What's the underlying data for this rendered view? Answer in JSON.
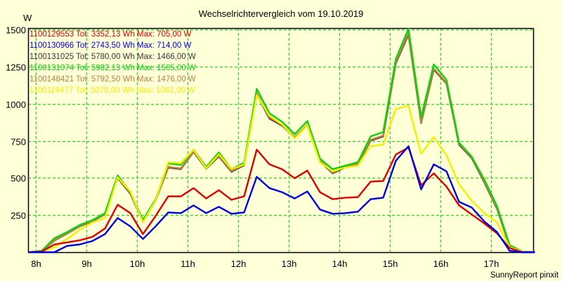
{
  "chart_data": {
    "type": "line",
    "title": "Wechselrichtervergleich vom 19.10.2019",
    "ylabel": "W",
    "xlabel": "",
    "footer": "SunnyReport pinxit",
    "ylim": [
      0,
      1500
    ],
    "xlim": [
      7.86,
      17.86
    ],
    "yticks": [
      250,
      500,
      750,
      1000,
      1250,
      1500
    ],
    "ytick_labels": [
      "250",
      "500",
      "750",
      "1000",
      "1250",
      "1500"
    ],
    "xticks": [
      8,
      9,
      10,
      11,
      12,
      13,
      14,
      15,
      16,
      17
    ],
    "xtick_labels": [
      "8h",
      "9h",
      "10h",
      "11h",
      "12h",
      "13h",
      "14h",
      "15h",
      "16h",
      "17h"
    ],
    "grid": true,
    "legend_position": "top-left",
    "x": [
      7.875,
      8.125,
      8.375,
      8.625,
      8.875,
      9.125,
      9.375,
      9.625,
      9.875,
      10.125,
      10.375,
      10.625,
      10.875,
      11.125,
      11.375,
      11.625,
      11.875,
      12.125,
      12.375,
      12.625,
      12.875,
      13.125,
      13.375,
      13.625,
      13.875,
      14.125,
      14.375,
      14.625,
      14.875,
      15.125,
      15.375,
      15.625,
      15.875,
      16.125,
      16.375,
      16.625,
      16.875,
      17.125,
      17.375,
      17.625,
      17.875
    ],
    "series": [
      {
        "name": "1100129553",
        "legend": "1100129553 Tot: 3352,13 Wh Max: 705,00 W",
        "color": "#e00000",
        "values": [
          0,
          5,
          52,
          66,
          80,
          103,
          160,
          320,
          263,
          122,
          244,
          376,
          376,
          432,
          362,
          418,
          353,
          376,
          691,
          592,
          559,
          498,
          550,
          404,
          357,
          367,
          371,
          475,
          480,
          658,
          705,
          451,
          531,
          442,
          315,
          254,
          193,
          127,
          28,
          0,
          0
        ]
      },
      {
        "name": "1100130966",
        "legend": "1100130966 Tot: 2743,50 Wh Max: 714,00 W",
        "color": "#0000e0",
        "values": [
          0,
          0,
          0,
          42,
          52,
          75,
          122,
          230,
          174,
          89,
          174,
          268,
          263,
          315,
          263,
          306,
          259,
          268,
          508,
          432,
          404,
          362,
          409,
          287,
          259,
          263,
          273,
          357,
          367,
          616,
          714,
          423,
          592,
          545,
          339,
          301,
          207,
          136,
          9,
          0,
          0
        ]
      },
      {
        "name": "1100131025",
        "legend": "1100131025 Tot: 5780,00 Wh Max: 1466,00 W",
        "color": "#40303a",
        "values": [
          0,
          8,
          78,
          126,
          174,
          208,
          256,
          500,
          394,
          205,
          348,
          570,
          560,
          676,
          562,
          645,
          542,
          586,
          1066,
          900,
          853,
          770,
          855,
          612,
          532,
          571,
          591,
          752,
          780,
          1273,
          1466,
          870,
          1230,
          1137,
          724,
          634,
          470,
          292,
          36,
          3,
          0
        ]
      },
      {
        "name": "1100131074",
        "legend": "1100131074 Tot: 5982,13 Wh Max: 1505,00 W",
        "color": "#10d010",
        "values": [
          0,
          10,
          94,
          136,
          183,
          216,
          263,
          517,
          404,
          216,
          357,
          597,
          588,
          691,
          574,
          672,
          559,
          602,
          1100,
          936,
          879,
          795,
          884,
          630,
          559,
          583,
          606,
          780,
          809,
          1302,
          1505,
          907,
          1265,
          1161,
          738,
          644,
          489,
          310,
          47,
          5,
          0
        ]
      },
      {
        "name": "1100148421",
        "legend": "1100148421 Tot: 5792,50 Wh Max: 1476,00 W",
        "color": "#c08040",
        "values": [
          0,
          8,
          80,
          128,
          176,
          210,
          258,
          505,
          398,
          207,
          350,
          574,
          564,
          680,
          565,
          649,
          546,
          590,
          1072,
          907,
          860,
          775,
          860,
          616,
          536,
          575,
          595,
          757,
          785,
          1279,
          1476,
          874,
          1236,
          1142,
          729,
          639,
          475,
          296,
          38,
          3,
          0
        ]
      },
      {
        "name": "1100119477",
        "legend": "1100119477 Tot: 5078,00 Wh Max: 1061,00 W",
        "color": "#f0f000",
        "values": [
          0,
          5,
          33,
          90,
          150,
          200,
          230,
          505,
          410,
          200,
          350,
          605,
          600,
          690,
          565,
          660,
          560,
          590,
          1058,
          920,
          860,
          766,
          855,
          605,
          545,
          570,
          583,
          715,
          724,
          964,
          987,
          663,
          776,
          653,
          456,
          348,
          263,
          202,
          33,
          5,
          0
        ]
      }
    ]
  }
}
